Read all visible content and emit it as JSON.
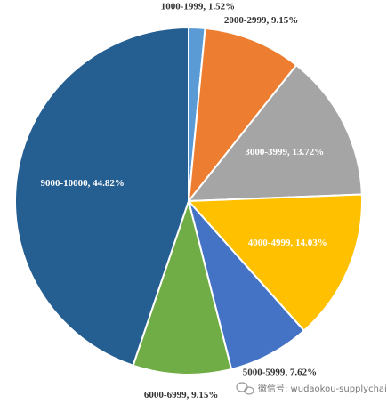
{
  "chart_data": {
    "type": "pie",
    "categories": [
      "1000-1999",
      "2000-2999",
      "3000-3999",
      "4000-4999",
      "5000-5999",
      "6000-6999",
      "9000-10000"
    ],
    "values": [
      1.52,
      9.15,
      13.72,
      14.03,
      7.62,
      9.15,
      44.82
    ],
    "value_labels": [
      "1000-1999, 1.52%",
      "2000-2999, 9.15%",
      "3000-3999, 13.72%",
      "4000-4999, 14.03%",
      "5000-5999, 7.62%",
      "6000-6999, 9.15%",
      "9000-10000, 44.82%"
    ],
    "colors": [
      "#5b9bd5",
      "#ed7d31",
      "#a5a5a5",
      "#ffc000",
      "#4472c4",
      "#70ad47",
      "#255e91"
    ],
    "watermark": "微信号: wudaokou-supplychain"
  }
}
